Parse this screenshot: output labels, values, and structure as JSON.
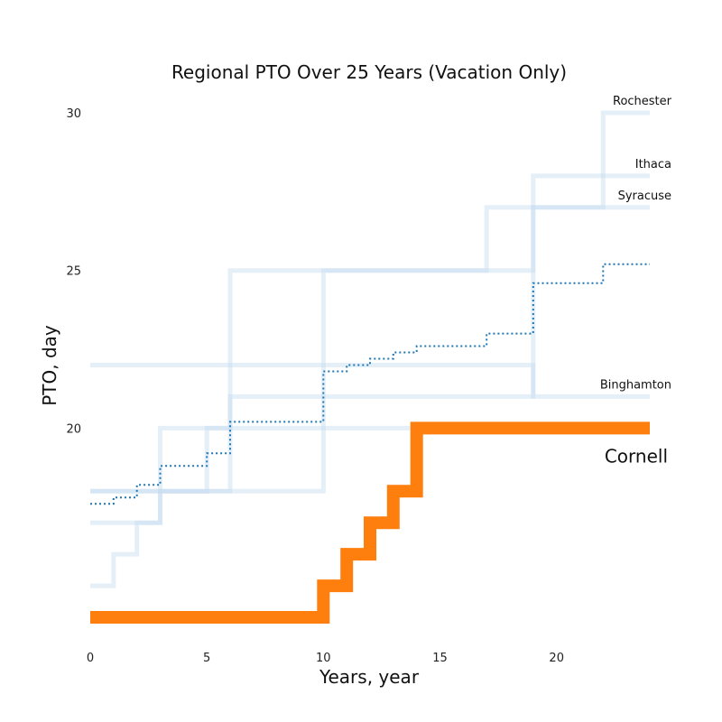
{
  "chart_data": {
    "type": "line",
    "title": "Regional PTO Over 25 Years (Vacation Only)",
    "xlabel": "Years, year",
    "ylabel": "PTO, day",
    "xlim": [
      0,
      24
    ],
    "ylim": [
      14,
      30
    ],
    "xticks": [
      0,
      5,
      10,
      15,
      20
    ],
    "yticks": [
      20,
      25,
      30
    ],
    "grid": false,
    "step": "post",
    "highlight_series": "Cornell",
    "colors": {
      "context": "#c6dbef",
      "average": "#1f77b4",
      "highlight": "#ff7f0e"
    },
    "series": [
      {
        "name": "Rochester",
        "x": [
          0,
          1,
          2,
          3,
          5,
          6,
          10,
          17,
          19,
          22,
          24
        ],
        "y": [
          15,
          16,
          17,
          18,
          20,
          25,
          25,
          27,
          27,
          30,
          30
        ]
      },
      {
        "name": "Ithaca",
        "x": [
          0,
          5,
          6,
          10,
          19,
          24
        ],
        "y": [
          18,
          18,
          21,
          21,
          28,
          28
        ]
      },
      {
        "name": "Syracuse",
        "x": [
          0,
          10,
          17,
          19,
          24
        ],
        "y": [
          18,
          25,
          25,
          27,
          27
        ]
      },
      {
        "name": "Binghamton",
        "x": [
          0,
          19,
          24
        ],
        "y": [
          22,
          21,
          21
        ]
      },
      {
        "name": "",
        "role": "context",
        "x": [
          0,
          3,
          24
        ],
        "y": [
          17,
          20,
          20
        ]
      },
      {
        "name": "",
        "role": "average",
        "x": [
          0,
          1,
          2,
          3,
          5,
          6,
          10,
          11,
          12,
          13,
          14,
          17,
          19,
          22,
          24
        ],
        "y": [
          17.6,
          17.8,
          18.2,
          18.8,
          19.2,
          20.2,
          21.8,
          22,
          22.2,
          22.4,
          22.6,
          23,
          24.6,
          25.2,
          25.2
        ]
      },
      {
        "name": "Cornell",
        "role": "highlight",
        "x": [
          0,
          10,
          11,
          12,
          13,
          14,
          24
        ],
        "y": [
          14,
          15,
          16,
          17,
          18,
          20,
          20
        ]
      }
    ]
  }
}
